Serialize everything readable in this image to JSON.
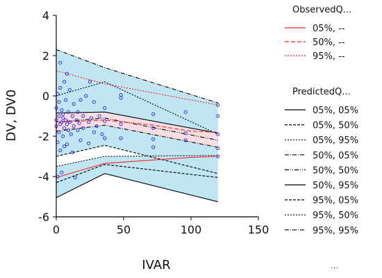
{
  "chart_data": {
    "type": "line",
    "xlabel": "IVAR",
    "ylabel": "DV, DV0",
    "xlim": [
      0,
      150
    ],
    "ylim": [
      -6,
      4
    ],
    "x_ticks": [
      "0",
      "50",
      "100",
      "150"
    ],
    "y_ticks": [
      "-6",
      "-4",
      "-2",
      "0",
      "2",
      "4"
    ],
    "grid": false,
    "legend_placement": "right",
    "legend": {
      "observed_title": "ObservedQ...",
      "observed_entries": [
        "05%, --",
        "50%, --",
        "95%, --"
      ],
      "predicted_title": "PredictedQ...",
      "predicted_entries": [
        "05%, 05%",
        "05%, 50%",
        "05%, 95%",
        "50%, 05%",
        "50%, 50%",
        "50%, 95%",
        "95%, 05%",
        "95%, 50%",
        "95%, 95%"
      ],
      "more": "..."
    },
    "colors": {
      "band_outer": "#bfe6f2",
      "band_median": "#f8dde3",
      "observed": "#ff2020",
      "points": "#3333dd"
    },
    "bands": [
      {
        "lower": [
          [
            0,
            -3.0
          ],
          [
            36,
            -2.45
          ],
          [
            120,
            -3.85
          ]
        ],
        "upper": [
          [
            0,
            2.3
          ],
          [
            36,
            1.4
          ],
          [
            120,
            -0.35
          ]
        ]
      },
      {
        "lower": [
          [
            0,
            -1.75
          ],
          [
            36,
            -1.45
          ],
          [
            120,
            -2.55
          ]
        ],
        "upper": [
          [
            0,
            -0.85
          ],
          [
            36,
            -0.8
          ],
          [
            120,
            -1.85
          ]
        ]
      },
      {
        "lower": [
          [
            0,
            -5.05
          ],
          [
            36,
            -3.85
          ],
          [
            120,
            -5.25
          ]
        ],
        "upper": [
          [
            0,
            -3.5
          ],
          [
            36,
            -3.0
          ],
          [
            120,
            -2.95
          ]
        ]
      }
    ],
    "series": [
      {
        "name": "05%, --",
        "color": "#ff2020",
        "dash": "",
        "points": [
          [
            0,
            -4.05
          ],
          [
            36,
            -3.35
          ],
          [
            100,
            -3.05
          ],
          [
            120,
            -3.0
          ]
        ]
      },
      {
        "name": "50%, --",
        "color": "#ff2020",
        "dash": "6,3",
        "points": [
          [
            0,
            -1.3
          ],
          [
            36,
            -1.2
          ],
          [
            72,
            -1.45
          ],
          [
            100,
            -1.75
          ],
          [
            120,
            -1.8
          ]
        ]
      },
      {
        "name": "95%, --",
        "color": "#ff2020",
        "dash": "2,2",
        "points": [
          [
            0,
            1.25
          ],
          [
            36,
            0.6
          ],
          [
            120,
            -0.45
          ]
        ]
      },
      {
        "name": "05%, 05%",
        "color": "#000000",
        "dash": "",
        "points": [
          [
            0,
            -5.05
          ],
          [
            36,
            -3.85
          ],
          [
            120,
            -5.25
          ]
        ]
      },
      {
        "name": "05%, 50%",
        "color": "#000000",
        "dash": "4,2",
        "points": [
          [
            0,
            -4.3
          ],
          [
            36,
            -3.4
          ],
          [
            120,
            -4.05
          ]
        ]
      },
      {
        "name": "05%, 95%",
        "color": "#000000",
        "dash": "2,2",
        "points": [
          [
            0,
            -3.5
          ],
          [
            36,
            -3.0
          ],
          [
            120,
            -2.95
          ]
        ]
      },
      {
        "name": "50%, 05%",
        "color": "#000000",
        "dash": "6,2,1,2",
        "points": [
          [
            0,
            -1.75
          ],
          [
            36,
            -1.45
          ],
          [
            120,
            -2.55
          ]
        ]
      },
      {
        "name": "50%, 50%",
        "color": "#000000",
        "dash": "6,2,1,2,1,2",
        "points": [
          [
            0,
            -1.3
          ],
          [
            36,
            -1.1
          ],
          [
            120,
            -2.2
          ]
        ]
      },
      {
        "name": "50%, 95%",
        "color": "#000000",
        "dash": "",
        "points": [
          [
            0,
            -0.85
          ],
          [
            36,
            -0.8
          ],
          [
            120,
            -1.85
          ]
        ]
      },
      {
        "name": "95%, 05%",
        "color": "#000000",
        "dash": "4,2",
        "points": [
          [
            0,
            -3.0
          ],
          [
            36,
            -2.45
          ],
          [
            120,
            -3.85
          ]
        ]
      },
      {
        "name": "95%, 50%",
        "color": "#000000",
        "dash": "2,2",
        "points": [
          [
            0,
            0.0
          ],
          [
            36,
            0.7
          ],
          [
            120,
            -1.9
          ]
        ]
      },
      {
        "name": "95%, 95%",
        "color": "#000000",
        "dash": "6,2,1,2",
        "points": [
          [
            0,
            2.3
          ],
          [
            36,
            1.4
          ],
          [
            120,
            -0.35
          ]
        ]
      }
    ],
    "scatter": [
      [
        0,
        -1.2
      ],
      [
        0,
        -1.5
      ],
      [
        0,
        -0.6
      ],
      [
        1,
        -2.3
      ],
      [
        1,
        -4.0
      ],
      [
        1,
        0.1
      ],
      [
        2,
        -1.0
      ],
      [
        2,
        -1.8
      ],
      [
        2,
        -0.3
      ],
      [
        3,
        0.4
      ],
      [
        3,
        -1.4
      ],
      [
        3,
        -2.7
      ],
      [
        3,
        1.65
      ],
      [
        4,
        -0.7
      ],
      [
        4,
        -1.3
      ],
      [
        4,
        -3.8
      ],
      [
        5,
        -1.1
      ],
      [
        5,
        -0.9
      ],
      [
        5,
        -2.0
      ],
      [
        6,
        -1.6
      ],
      [
        6,
        0.7
      ],
      [
        6,
        -2.5
      ],
      [
        7,
        -1.2
      ],
      [
        7,
        -0.2
      ],
      [
        8,
        -1.4
      ],
      [
        8,
        -2.4
      ],
      [
        8,
        1.1
      ],
      [
        9,
        -0.8
      ],
      [
        9,
        -1.7
      ],
      [
        10,
        -1.3
      ],
      [
        10,
        0.3
      ],
      [
        11,
        -1.9
      ],
      [
        12,
        -1.0
      ],
      [
        12,
        -2.8
      ],
      [
        13,
        -0.4
      ],
      [
        13,
        -1.5
      ],
      [
        14,
        -4.05
      ],
      [
        15,
        -1.2
      ],
      [
        16,
        -0.8
      ],
      [
        16,
        -1.7
      ],
      [
        17,
        -1.35
      ],
      [
        18,
        -0.2
      ],
      [
        18,
        -2.2
      ],
      [
        20,
        -1.0
      ],
      [
        20,
        -1.6
      ],
      [
        22,
        0.0
      ],
      [
        24,
        -1.3
      ],
      [
        24,
        -2.35
      ],
      [
        25,
        0.7
      ],
      [
        26,
        -1.1
      ],
      [
        28,
        -0.3
      ],
      [
        28,
        -1.8
      ],
      [
        30,
        -1.5
      ],
      [
        32,
        -1.0
      ],
      [
        34,
        -1.9
      ],
      [
        36,
        -2.1
      ],
      [
        36,
        -0.6
      ],
      [
        36,
        -1.25
      ],
      [
        48,
        -0.1
      ],
      [
        48,
        -1.4
      ],
      [
        48,
        -2.1
      ],
      [
        48,
        0.05
      ],
      [
        72,
        -0.9
      ],
      [
        72,
        -1.6
      ],
      [
        72,
        -2.15
      ],
      [
        72,
        -2.55
      ],
      [
        96,
        -0.8
      ],
      [
        96,
        -1.85
      ],
      [
        96,
        -2.2
      ],
      [
        120,
        -0.45
      ],
      [
        120,
        -1.0
      ],
      [
        120,
        -1.9
      ],
      [
        120,
        -2.6
      ],
      [
        120,
        -3.0
      ]
    ]
  }
}
